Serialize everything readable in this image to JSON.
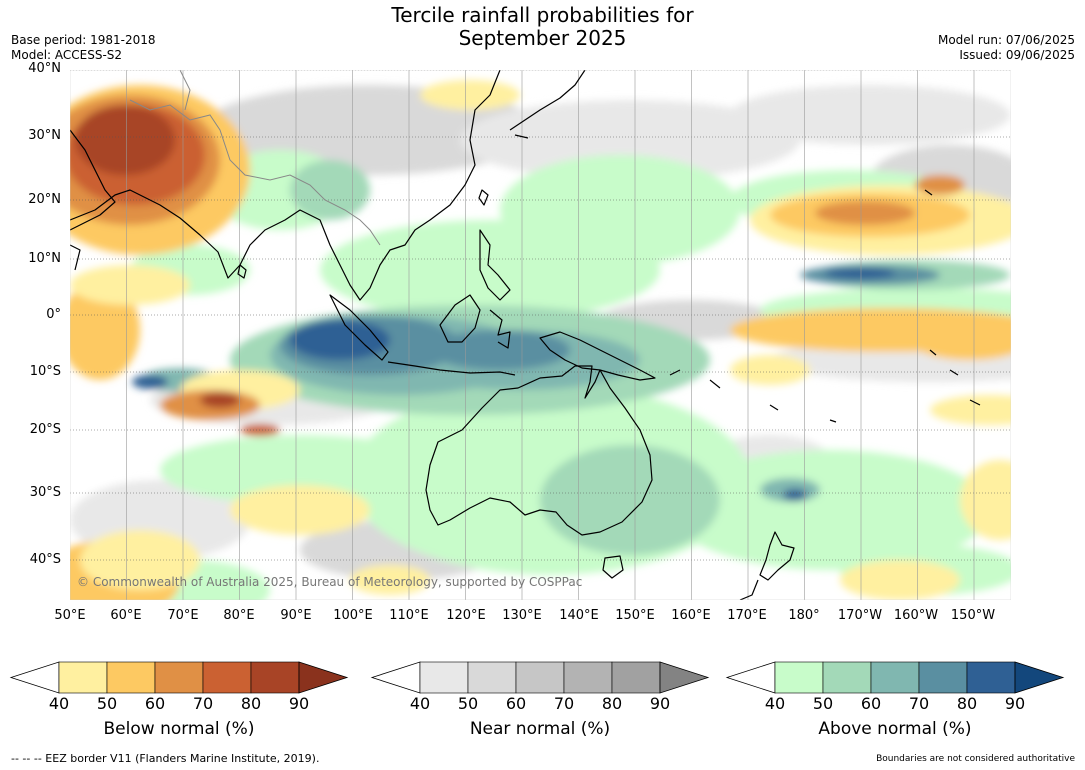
{
  "title": [
    "Tercile rainfall probabilities for",
    "September 2025"
  ],
  "meta_left": [
    "Base period: 1981-2018",
    "Model: ACCESS-S2"
  ],
  "meta_right": [
    "Model run: 07/06/2025",
    "Issued: 09/06/2025"
  ],
  "lat_ticks": [
    "40°N",
    "30°N",
    "20°N",
    "10°N",
    "0°",
    "10°S",
    "20°S",
    "30°S",
    "40°S"
  ],
  "lon_ticks": [
    "50°E",
    "60°E",
    "70°E",
    "80°E",
    "90°E",
    "100°E",
    "110°E",
    "120°E",
    "130°E",
    "140°E",
    "150°E",
    "160°E",
    "170°E",
    "180°",
    "170°W",
    "160°W",
    "150°W"
  ],
  "copyright": "© Commonwealth of Australia 2025, Bureau of Meteorology, supported by COSPPac",
  "colorbars": [
    {
      "title": "Below normal (%)",
      "ticks": [
        "40",
        "50",
        "60",
        "70",
        "80",
        "90"
      ],
      "colors": [
        "#fff0a0",
        "#fdc962",
        "#e09045",
        "#cb6132",
        "#a84426"
      ],
      "over": "#8a321d"
    },
    {
      "title": "Near normal (%)",
      "ticks": [
        "40",
        "50",
        "60",
        "70",
        "80",
        "90"
      ],
      "colors": [
        "#e8e8e8",
        "#d9d9d9",
        "#c6c6c6",
        "#b3b3b3",
        "#a1a1a1"
      ],
      "over": "#838383"
    },
    {
      "title": "Above normal (%)",
      "ticks": [
        "40",
        "50",
        "60",
        "70",
        "80",
        "90"
      ],
      "colors": [
        "#c8fcca",
        "#a3d9b8",
        "#80b7b0",
        "#5a8fa1",
        "#2f6094"
      ],
      "over": "#13477c"
    }
  ],
  "footer_left": "--  --  -- EEZ border V11 (Flanders Marine Institute, 2019).",
  "footer_right": "Boundaries are not considered authoritative"
}
